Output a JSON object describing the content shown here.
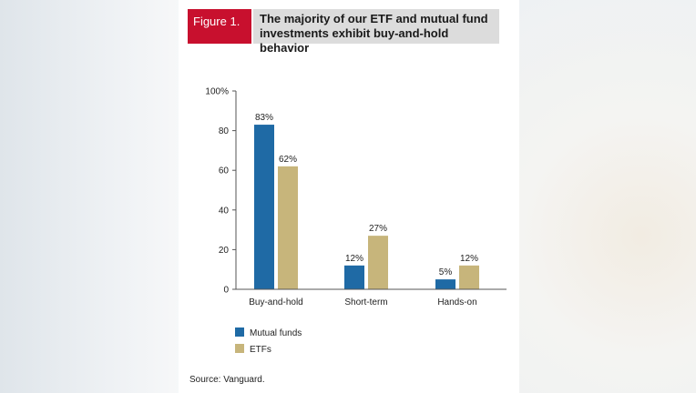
{
  "figure": {
    "label": "Figure 1.",
    "title_line1": "The majority of our ETF and mutual fund",
    "title_line2": "investments exhibit buy-and-hold behavior",
    "source": "Source: Vanguard."
  },
  "chart_data": {
    "type": "bar",
    "categories": [
      "Buy-and-hold",
      "Short-term",
      "Hands-on"
    ],
    "series": [
      {
        "name": "Mutual funds",
        "values": [
          83,
          12,
          5
        ],
        "labels": [
          "83%",
          "12%",
          "5%"
        ],
        "color": "#1f6aa5"
      },
      {
        "name": "ETFs",
        "values": [
          62,
          27,
          12
        ],
        "labels": [
          "62%",
          "27%",
          "12%"
        ],
        "color": "#c7b57b"
      }
    ],
    "yticks": [
      "0",
      "20",
      "40",
      "60",
      "80",
      "100%"
    ],
    "ytick_values": [
      0,
      20,
      40,
      60,
      80,
      100
    ],
    "ylim": [
      0,
      100
    ],
    "legend_position": "bottom-left",
    "grid": false
  }
}
